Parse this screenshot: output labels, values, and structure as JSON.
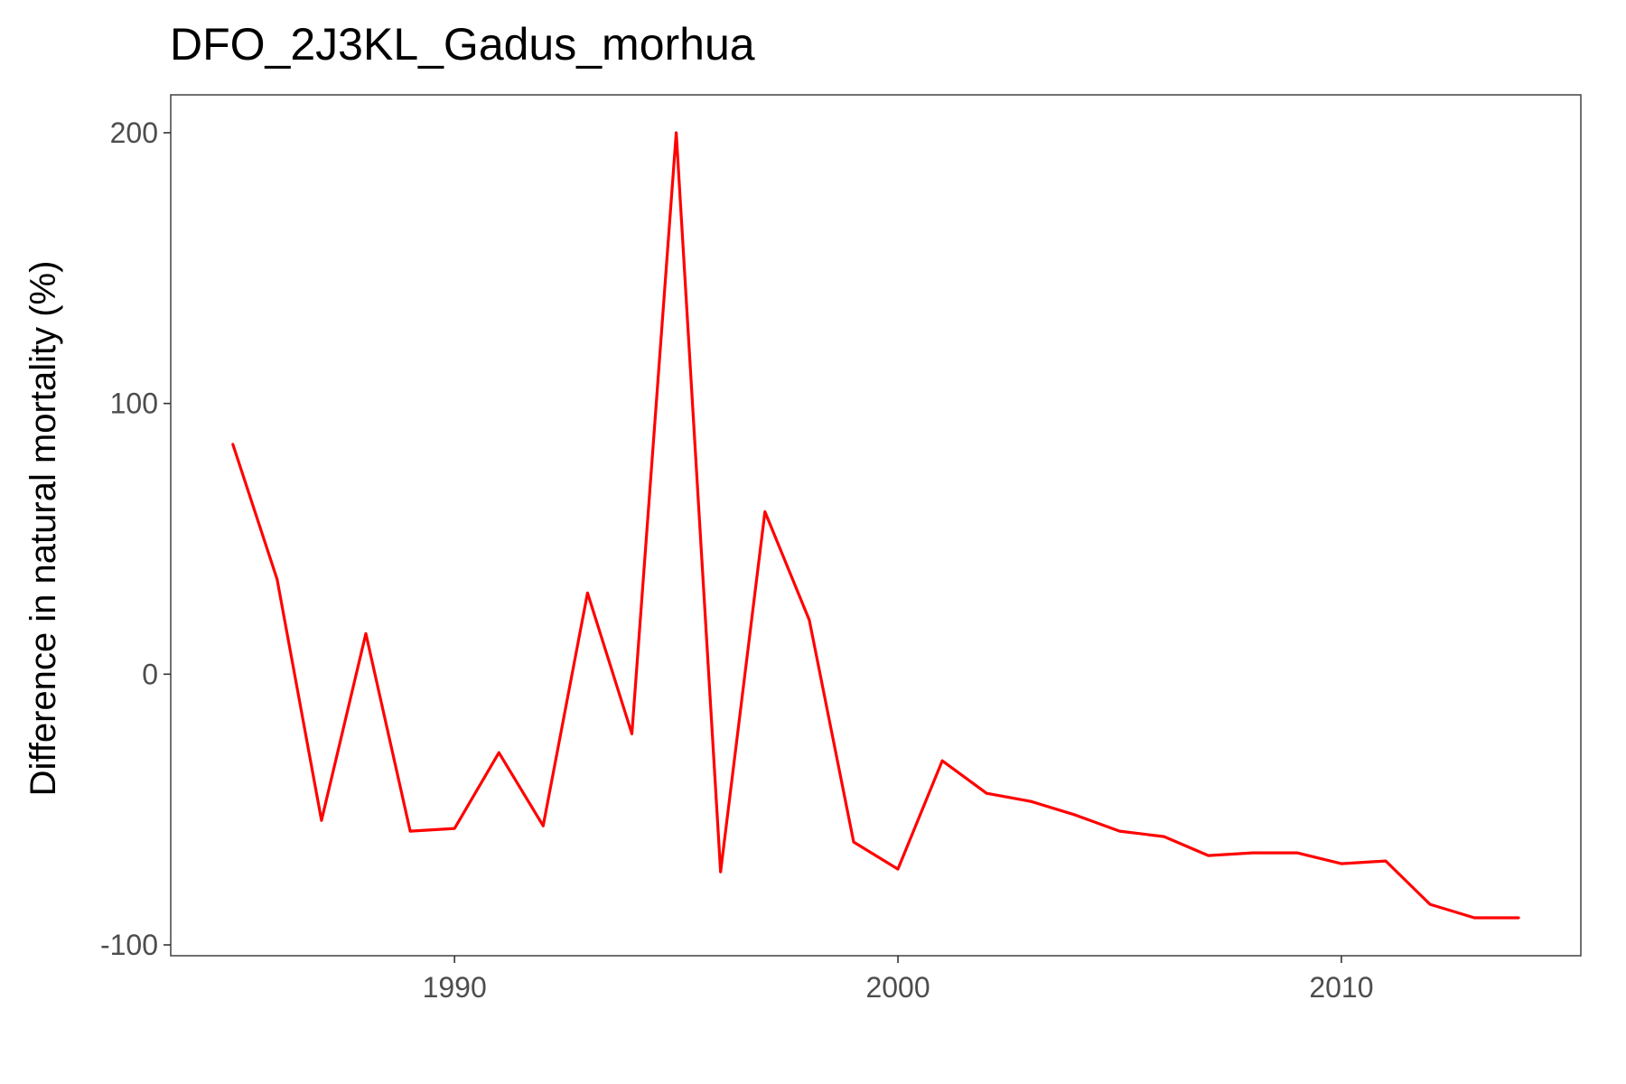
{
  "chart_data": {
    "type": "line",
    "title": "DFO_2J3KL_Gadus_morhua",
    "xlabel": "",
    "ylabel": "Difference in natural mortality (%)",
    "xlim": [
      1983.6,
      2015.4
    ],
    "ylim": [
      -104,
      214
    ],
    "x_ticks": [
      1990,
      2000,
      2010
    ],
    "y_ticks": [
      -100,
      0,
      100,
      200
    ],
    "x_tick_labels": [
      "1990",
      "2000",
      "2010"
    ],
    "y_tick_labels": [
      "-100",
      "0",
      "100",
      "200"
    ],
    "grid": false,
    "series": [
      {
        "name": "Difference in natural mortality",
        "color": "#ff0000",
        "x": [
          1985,
          1986,
          1987,
          1988,
          1989,
          1990,
          1991,
          1992,
          1993,
          1994,
          1995,
          1996,
          1997,
          1998,
          1999,
          2000,
          2001,
          2002,
          2003,
          2004,
          2005,
          2006,
          2007,
          2008,
          2009,
          2010,
          2011,
          2012,
          2013,
          2014
        ],
        "y": [
          85,
          35,
          -54,
          15,
          -58,
          -57,
          -29,
          -56,
          30,
          -22,
          200,
          -73,
          60,
          20,
          -62,
          -72,
          -32,
          -44,
          -47,
          -52,
          -58,
          -60,
          -67,
          -66,
          -66,
          -70,
          -69,
          -85,
          -90,
          -90
        ]
      }
    ]
  }
}
